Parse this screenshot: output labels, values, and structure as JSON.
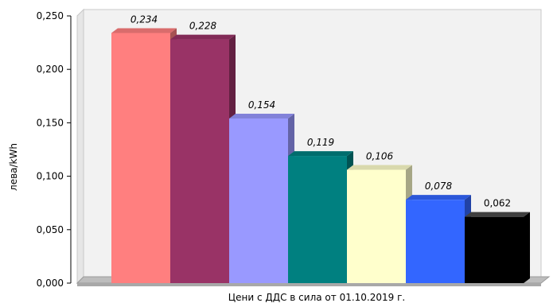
{
  "chart_data": {
    "type": "bar",
    "title": "",
    "xlabel": "Цени с ДДС в сила от 01.10.2019  г.",
    "ylabel": "лева/kWh",
    "ylim": [
      0,
      0.25
    ],
    "yticks": [
      "0,000",
      "0,050",
      "0,100",
      "0,150",
      "0,200",
      "0,250"
    ],
    "grid": false,
    "legend": "none",
    "bars": [
      {
        "value": 0.234,
        "label": "0,234",
        "color": "#ff7f7f",
        "italic": true
      },
      {
        "value": 0.228,
        "label": "0,228",
        "color": "#993366",
        "italic": true
      },
      {
        "value": 0.154,
        "label": "0,154",
        "color": "#9999ff",
        "italic": true
      },
      {
        "value": 0.119,
        "label": "0,119",
        "color": "#008080",
        "italic": true
      },
      {
        "value": 0.106,
        "label": "0,106",
        "color": "#ffffcc",
        "italic": true
      },
      {
        "value": 0.078,
        "label": "0,078",
        "color": "#3366ff",
        "italic": true
      },
      {
        "value": 0.062,
        "label": "0,062",
        "color": "#000000",
        "italic": false
      }
    ]
  }
}
